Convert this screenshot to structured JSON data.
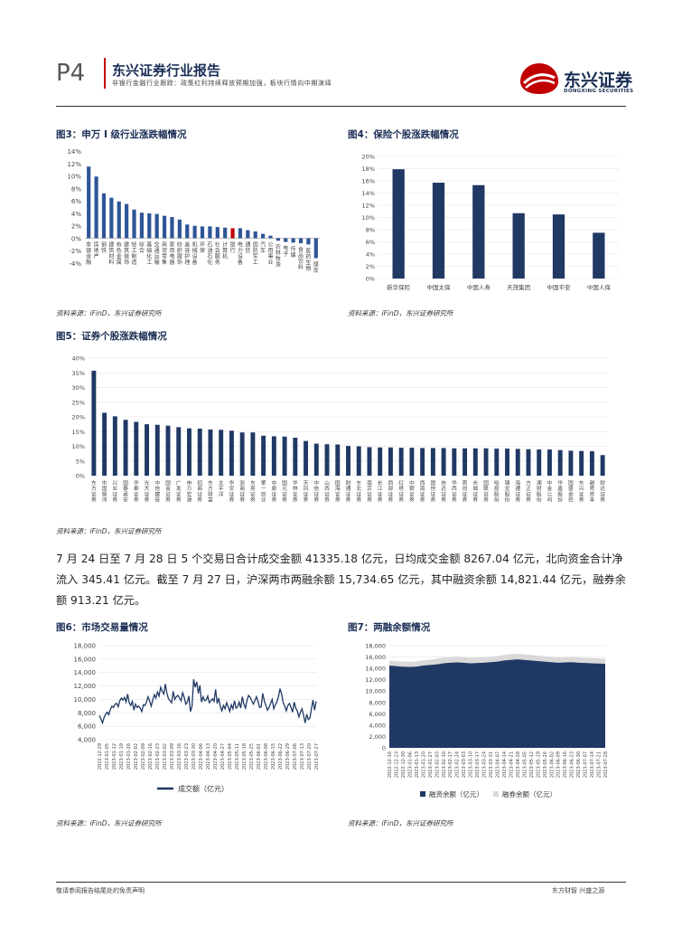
{
  "header": {
    "page_no": "P4",
    "report_title": "东兴证券行业报告",
    "subtitle": "非银行金融行业跟踪：政策红利持续释放预期加强，板块行情向中期演绎",
    "logo_cn": "东兴证券",
    "logo_en": "DONGXING SECURITIES"
  },
  "source": "资料来源：iFinD，东兴证券研究所",
  "fig3": {
    "title": "图3：申万 I 级行业涨跌幅情况",
    "chart_data": {
      "type": "bar",
      "title": "申万 I 级行业涨跌幅情况",
      "ylim": [
        -0.04,
        0.14
      ],
      "yticks": [
        "14%",
        "12%",
        "10%",
        "8%",
        "6%",
        "4%",
        "2%",
        "0%",
        "-2%",
        "-4%"
      ],
      "categories": [
        "非银金融",
        "房地产",
        "钢铁",
        "建筑材料",
        "有色金属",
        "建筑装饰",
        "轻工制造",
        "综合",
        "基础化工",
        "交通运输",
        "商贸零售",
        "家用电器",
        "纺织服饰",
        "美容护理",
        "机械设备",
        "环保",
        "石油石化",
        "社会服务",
        "计算机",
        "银行",
        "电力设备",
        "通信",
        "国防军工",
        "汽车",
        "公用事业",
        "农林牧渔",
        "电子",
        "传媒",
        "食品饮料",
        "医药生物",
        "煤炭"
      ],
      "values": [
        0.115,
        0.099,
        0.072,
        0.065,
        0.059,
        0.055,
        0.046,
        0.041,
        0.04,
        0.039,
        0.036,
        0.034,
        0.03,
        0.022,
        0.02,
        0.019,
        0.019,
        0.018,
        0.017,
        0.016,
        0.016,
        0.013,
        0.011,
        0.007,
        0.004,
        -0.004,
        -0.006,
        -0.007,
        -0.008,
        -0.01,
        -0.032
      ],
      "highlight_index": 19
    }
  },
  "fig4": {
    "title": "图4：保险个股涨跌幅情况",
    "chart_data": {
      "type": "bar",
      "title": "保险个股涨跌幅情况",
      "ylim": [
        0,
        0.2
      ],
      "yticks": [
        "20%",
        "18%",
        "16%",
        "14%",
        "12%",
        "10%",
        "8%",
        "6%",
        "4%",
        "2%",
        "0%"
      ],
      "categories": [
        "新华保险",
        "中国太保",
        "中国人寿",
        "天茂集团",
        "中国平安",
        "中国人保"
      ],
      "values": [
        0.179,
        0.157,
        0.153,
        0.107,
        0.105,
        0.075
      ]
    }
  },
  "fig5": {
    "title": "图5：证券个股涨跌幅情况",
    "chart_data": {
      "type": "bar",
      "title": "证券个股涨跌幅情况",
      "ylim": [
        0,
        0.4
      ],
      "yticks": [
        "40%",
        "35%",
        "30%",
        "25%",
        "20%",
        "15%",
        "10%",
        "5%",
        "0%"
      ],
      "categories": [
        "东方证券",
        "中国银河",
        "兴业证券",
        "国泰君安",
        "华泰证券",
        "光大证券",
        "中信建投",
        "国金证券",
        "广发证券",
        "申万宏源",
        "招商证券",
        "东方财富",
        "太平洋",
        "华安证券",
        "浙商证券",
        "东吴证券",
        "第一创业",
        "中原证券",
        "国元证券",
        "华林证券",
        "天风证券",
        "中信证券",
        "山西证券",
        "国海证券",
        "财通证券",
        "东北证券",
        "南京证券",
        "长江证券",
        "西部证券",
        "红塔证券",
        "中银证券",
        "西南证券",
        "国信证券",
        "信达证券",
        "华西证券",
        "首创证券",
        "长城证券",
        "国联证券",
        "哈投股份",
        "锦龙股份",
        "海通证券",
        "方正证券",
        "湘财股份",
        "中金公司",
        "华鑫股份",
        "国盛金控",
        "东兴证券",
        "越秀资本",
        "财达证券"
      ],
      "values": [
        0.357,
        0.214,
        0.202,
        0.19,
        0.183,
        0.175,
        0.173,
        0.17,
        0.165,
        0.161,
        0.16,
        0.157,
        0.156,
        0.153,
        0.147,
        0.147,
        0.136,
        0.134,
        0.133,
        0.129,
        0.118,
        0.109,
        0.107,
        0.106,
        0.101,
        0.1,
        0.097,
        0.096,
        0.096,
        0.095,
        0.095,
        0.094,
        0.094,
        0.094,
        0.093,
        0.093,
        0.093,
        0.093,
        0.092,
        0.092,
        0.091,
        0.09,
        0.089,
        0.089,
        0.087,
        0.085,
        0.084,
        0.083,
        0.07
      ]
    }
  },
  "paragraph": {
    "text": "7 月 24 日至 7 月 28 日 5 个交易日合计成交金额 41335.18 亿元，日均成交金额 8267.04 亿元，北向资金合计净流入 345.41 亿元。截至 7 月 27 日，沪深两市两融余额 15,734.65 亿元，其中融资余额 14,821.44 亿元，融券余额 913.21 亿元。"
  },
  "fig6": {
    "title": "图6：市场交易量情况",
    "chart_data": {
      "type": "line",
      "title": "市场交易量情况",
      "ylim": [
        4000,
        18000
      ],
      "yticks": [
        "18,000",
        "16,000",
        "14,000",
        "12,000",
        "10,000",
        "8,000",
        "6,000",
        "4,000"
      ],
      "legend": "成交额（亿元）",
      "xticks": [
        "2022-12-29",
        "2023-01-05",
        "2023-01-12",
        "2023-01-19",
        "2023-01-26",
        "2023-02-02",
        "2023-02-09",
        "2023-02-16",
        "2023-02-23",
        "2023-03-02",
        "2023-03-09",
        "2023-03-16",
        "2023-03-23",
        "2023-03-30",
        "2023-04-06",
        "2023-04-13",
        "2023-04-20",
        "2023-04-27",
        "2023-05-04",
        "2023-05-11",
        "2023-05-18",
        "2023-05-25",
        "2023-06-01",
        "2023-06-08",
        "2023-06-15",
        "2023-06-22",
        "2023-06-29",
        "2023-07-06",
        "2023-07-13",
        "2023-07-20",
        "2023-07-27"
      ],
      "values": [
        7600,
        7100,
        6500,
        7300,
        7800,
        8100,
        7700,
        8500,
        9000,
        8800,
        9300,
        9400,
        8900,
        9800,
        10200,
        9900,
        10300,
        9600,
        10800,
        9500,
        9100,
        9700,
        8400,
        9300,
        8800,
        9000,
        8700,
        8200,
        9200,
        9100,
        9600,
        10400,
        9800,
        9000,
        9900,
        10700,
        10200,
        11100,
        10500,
        11800,
        11200,
        10800,
        12300,
        10900,
        10100,
        9800,
        9500,
        11200,
        10000,
        10400,
        10600,
        10200,
        9800,
        11000,
        10300,
        9300,
        9600,
        10500,
        8200,
        9000,
        13000,
        11800,
        12600,
        10900,
        12100,
        9600,
        10400,
        9800,
        9900,
        10500,
        9500,
        9800,
        10100,
        9700,
        11500,
        9400,
        10200,
        9000,
        8300,
        9100,
        8600,
        9500,
        8900,
        8200,
        9200,
        8600,
        9800,
        8700,
        8900,
        9600,
        8700,
        10400,
        9300,
        8700,
        9900,
        10600,
        10300,
        9800,
        9300,
        9800,
        10400,
        9700,
        8800,
        8900,
        10900,
        9800,
        9100,
        8400,
        8800,
        9400,
        10000,
        8600,
        9200,
        9600,
        10400,
        11600,
        10800,
        9500,
        9000,
        8300,
        9100,
        9400,
        8800,
        8100,
        9600,
        8700,
        8300,
        7400,
        8100,
        8600,
        7600,
        6500,
        7800,
        7000,
        7200,
        8600,
        9900,
        8400,
        9700
      ]
    }
  },
  "fig7": {
    "title": "图7：两融余额情况",
    "chart_data": {
      "type": "area",
      "title": "两融余额情况",
      "ylim": [
        0,
        18000
      ],
      "yticks": [
        "18,000",
        "16,000",
        "14,000",
        "12,000",
        "10,000",
        "8,000",
        "6,000",
        "4,000",
        "2,000",
        "0"
      ],
      "legend": [
        "融资余额（亿元）",
        "融券余额（亿元）"
      ],
      "xticks": [
        "2022-12-16",
        "2022-12-23",
        "2022-12-30",
        "2023-01-06",
        "2023-01-13",
        "2023-01-20",
        "2023-01-27",
        "2023-02-03",
        "2023-02-10",
        "2023-02-17",
        "2023-02-24",
        "2023-03-03",
        "2023-03-10",
        "2023-03-17",
        "2023-03-24",
        "2023-03-31",
        "2023-04-07",
        "2023-04-14",
        "2023-04-21",
        "2023-04-28",
        "2023-05-05",
        "2023-05-12",
        "2023-05-19",
        "2023-05-26",
        "2023-06-02",
        "2023-06-09",
        "2023-06-16",
        "2023-06-23",
        "2023-06-30",
        "2023-07-07",
        "2023-07-14",
        "2023-07-21",
        "2023-07-28"
      ],
      "series": [
        {
          "name": "融资余额（亿元）",
          "values": [
            14500,
            14400,
            14300,
            14250,
            14300,
            14500,
            14600,
            14700,
            14900,
            15000,
            15050,
            15000,
            14900,
            14950,
            15000,
            15100,
            15200,
            15400,
            15500,
            15600,
            15500,
            15400,
            15300,
            15200,
            15100,
            15000,
            15050,
            15100,
            15000,
            14950,
            14900,
            14850,
            14821
          ]
        },
        {
          "name": "融券余额（亿元）",
          "values": [
            900,
            900,
            900,
            910,
            920,
            930,
            950,
            980,
            1000,
            1000,
            990,
            980,
            970,
            960,
            950,
            950,
            960,
            970,
            980,
            980,
            970,
            960,
            950,
            940,
            930,
            930,
            920,
            920,
            915,
            915,
            913,
            913,
            913
          ]
        }
      ]
    }
  },
  "footer": {
    "left": "敬请参阅报告结尾处的免责声明",
    "right": "东方财智 兴盛之源"
  }
}
